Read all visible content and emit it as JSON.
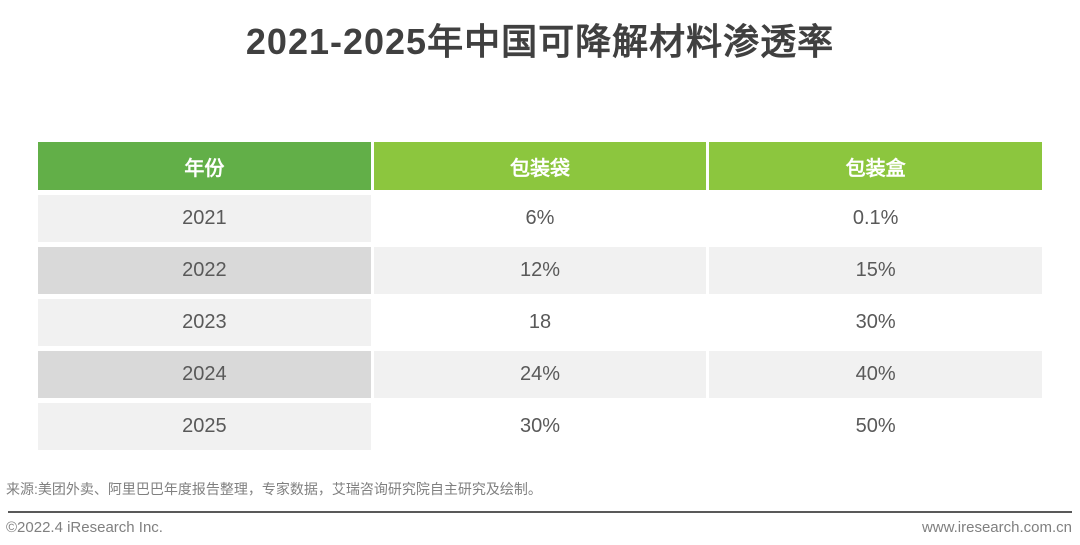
{
  "title": "2021-2025年中国可降解材料渗透率",
  "table": {
    "headers": {
      "year": "年份",
      "bag": "包装袋",
      "box": "包装盒"
    },
    "rows": [
      {
        "year": "2021",
        "bag": "6%",
        "box": "0.1%"
      },
      {
        "year": "2022",
        "bag": "12%",
        "box": "15%"
      },
      {
        "year": "2023",
        "bag": "18",
        "box": "30%"
      },
      {
        "year": "2024",
        "bag": "24%",
        "box": "40%"
      },
      {
        "year": "2025",
        "bag": "30%",
        "box": "50%"
      }
    ]
  },
  "source_note": "来源:美团外卖、阿里巴巴年度报告整理，专家数据，艾瑞咨询研究院自主研究及绘制。",
  "footer": {
    "copyright": "©2022.4 iResearch Inc.",
    "website": "www.iresearch.com.cn"
  },
  "colors": {
    "header_year_green": "#62af48",
    "header_data_green": "#8cc63e",
    "row_year_light": "#f1f1f1",
    "row_year_dark": "#d9d9d9",
    "row_data_light": "#f1f1f1",
    "row_data_white": "#ffffff",
    "title_text": "#404040",
    "cell_text": "#595959",
    "muted_text": "#808080"
  },
  "chart_data": {
    "type": "table",
    "title": "2021-2025年中国可降解材料渗透率",
    "columns": [
      "年份",
      "包装袋",
      "包装盒"
    ],
    "categories": [
      "2021",
      "2022",
      "2023",
      "2024",
      "2025"
    ],
    "series": [
      {
        "name": "包装袋",
        "values": [
          "6%",
          "12%",
          "18",
          "24%",
          "30%"
        ]
      },
      {
        "name": "包装盒",
        "values": [
          "0.1%",
          "15%",
          "30%",
          "40%",
          "50%"
        ]
      }
    ]
  }
}
